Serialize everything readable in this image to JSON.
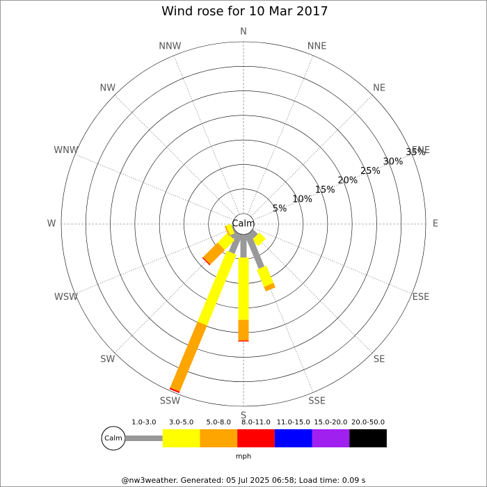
{
  "chart_data": {
    "type": "windrose",
    "title": "Wind rose for 10 Mar 2017",
    "categories": [
      "N",
      "NNE",
      "NE",
      "ENE",
      "E",
      "ESE",
      "SE",
      "SSE",
      "S",
      "SSW",
      "SW",
      "WSW",
      "W",
      "WNW",
      "NW",
      "NNW"
    ],
    "calm_label": "Calm",
    "rlim": [
      0,
      35
    ],
    "rticks": [
      {
        "value": 5,
        "label": "5%"
      },
      {
        "value": 10,
        "label": "10%"
      },
      {
        "value": 15,
        "label": "15%"
      },
      {
        "value": 20,
        "label": "20%"
      },
      {
        "value": 25,
        "label": "25%"
      },
      {
        "value": 30,
        "label": "30%"
      },
      {
        "value": 35,
        "label": "35%"
      }
    ],
    "series": [
      {
        "name": "1.0-3.0",
        "color": "#999999",
        "values": [
          0,
          0,
          0,
          0,
          0,
          0,
          1.4,
          7.5,
          4.7,
          4.2,
          1.5,
          0.3,
          0,
          0,
          0,
          0
        ]
      },
      {
        "name": "3.0-5.0",
        "color": "#ffff00",
        "values": [
          0,
          0,
          0,
          0,
          0,
          0,
          1.8,
          3.8,
          12.7,
          15.6,
          2.8,
          1.0,
          0,
          0,
          0,
          0
        ]
      },
      {
        "name": "5.0-8.0",
        "color": "#ffa500",
        "values": [
          0,
          0,
          0,
          0,
          0,
          0,
          0,
          1.0,
          4.2,
          14.6,
          4.2,
          0.3,
          0,
          0,
          0,
          0
        ]
      },
      {
        "name": "8.0-11.0",
        "color": "#ff0000",
        "values": [
          0,
          0,
          0,
          0,
          0,
          0,
          0,
          0,
          0.2,
          0.3,
          0.2,
          0,
          0,
          0,
          0,
          0
        ]
      },
      {
        "name": "11.0-15.0",
        "color": "#0000ff",
        "values": [
          0,
          0,
          0,
          0,
          0,
          0,
          0,
          0,
          0,
          0,
          0,
          0,
          0,
          0,
          0,
          0
        ]
      },
      {
        "name": "15.0-20.0",
        "color": "#a020f0",
        "values": [
          0,
          0,
          0,
          0,
          0,
          0,
          0,
          0,
          0,
          0,
          0,
          0,
          0,
          0,
          0,
          0
        ]
      },
      {
        "name": "20.0-50.0",
        "color": "#000000",
        "values": [
          0,
          0,
          0,
          0,
          0,
          0,
          0,
          0,
          0,
          0,
          0,
          0,
          0,
          0,
          0,
          0
        ]
      }
    ],
    "unit": "mph",
    "footer": "@nw3weather. Generated: 05 Jul 2025 06:58; Load time: 0.09 s"
  }
}
